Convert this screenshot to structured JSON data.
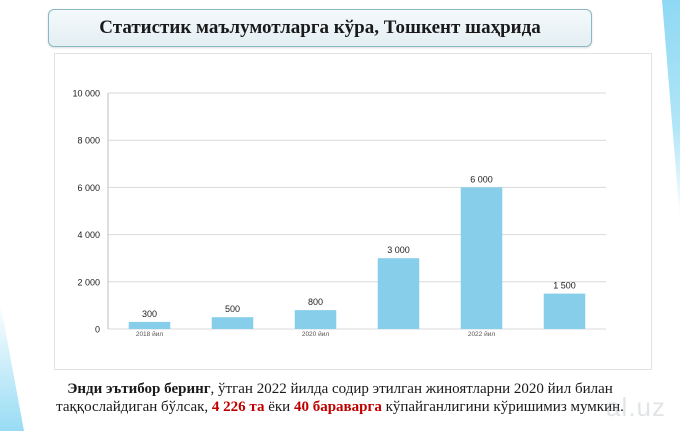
{
  "title": "Статистик маълумотларга кўра, Тошкент шаҳрида",
  "footer": {
    "emph": "Энди эътибор беринг",
    "p1": ", ўтган 2022 йилда содир этилган жиноятларни 2020 йил билан",
    "p2": "таққослайдиган бўлсак, ",
    "num1": "4 226 та",
    "p3": " ёки ",
    "num2": "40 бараварга",
    "p4": " кўпайганлигини кўришимиз мумкин."
  },
  "watermark": "al.uz",
  "colors": {
    "bar": "#87ceeb",
    "highlight": "#c00000"
  },
  "chart_data": {
    "type": "bar",
    "categories": [
      "2018 йил",
      "",
      "2020 йил",
      "",
      "2022 йил",
      ""
    ],
    "values": [
      300,
      500,
      800,
      3000,
      6000,
      1500
    ],
    "data_labels": [
      "300",
      "500",
      "800",
      "3 000",
      "6 000",
      "1 500"
    ],
    "ylim": [
      0,
      10000
    ],
    "yticks": [
      0,
      2000,
      4000,
      6000,
      8000,
      10000
    ],
    "ytick_labels": [
      "0",
      "2 000",
      "4 000",
      "6 000",
      "8 000",
      "10 000"
    ],
    "grid": true,
    "legend": "none"
  }
}
